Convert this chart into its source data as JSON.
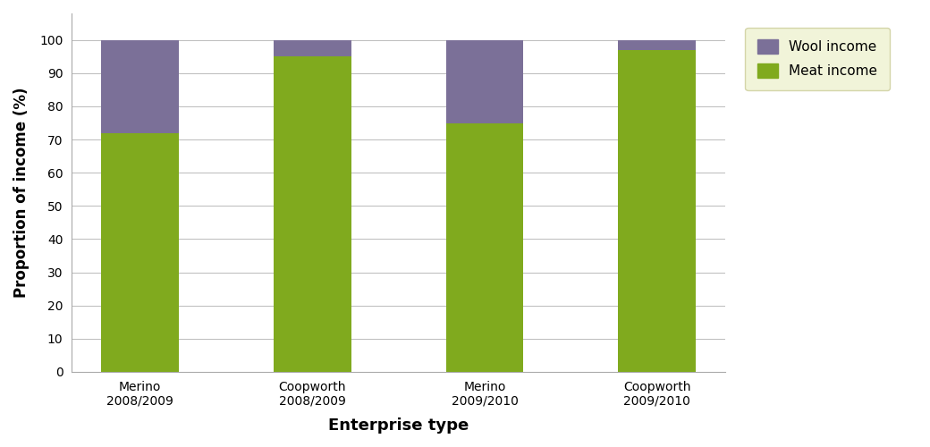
{
  "categories": [
    "Merino\n2008/2009",
    "Coopworth\n2008/2009",
    "Merino\n2009/2010",
    "Coopworth\n2009/2010"
  ],
  "meat_values": [
    72,
    95,
    75,
    97
  ],
  "wool_values": [
    28,
    5,
    25,
    3
  ],
  "meat_color": "#80AA1E",
  "wool_color": "#7B7098",
  "xlabel": "Enterprise type",
  "ylabel": "Proportion of income (%)",
  "ylim": [
    0,
    108
  ],
  "yticks": [
    0,
    10,
    20,
    30,
    40,
    50,
    60,
    70,
    80,
    90,
    100
  ],
  "legend_labels": [
    "Wool income",
    "Meat income"
  ],
  "legend_facecolor": "#EEF2D0",
  "legend_edgecolor": "#CCCC99",
  "bar_width": 0.45,
  "figsize": [
    10.4,
    5.0
  ],
  "dpi": 100,
  "bg_color": "#ffffff",
  "grid_color": "#bbbbbb",
  "spine_color": "#aaaaaa",
  "tick_fontsize": 10,
  "label_fontsize": 12,
  "xlabel_fontsize": 13
}
